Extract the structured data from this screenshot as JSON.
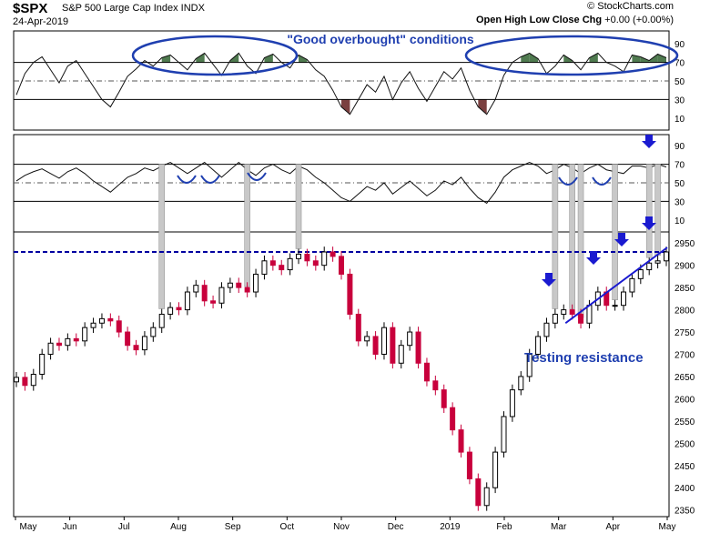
{
  "header": {
    "ticker": "$SPX",
    "description": "S&P 500 Large Cap Index  INDX",
    "date": "24-Apr-2019",
    "brand": "© StockCharts.com",
    "ohlc_labels": "Open  High  Low  Close  Chg",
    "chg_value": "+0.00 (+0.00%)"
  },
  "colors": {
    "up_candle": "#000000",
    "down_candle": "#c8003c",
    "overbought_fill": "#4f7a4f",
    "oversold_fill": "#7a4040",
    "highlight_bar": "#c8c8c8",
    "annotation_blue": "#1f3fb0",
    "resistance_line": "#1a1ad0"
  },
  "chart_data": [
    {
      "type": "line",
      "name": "RSI panel 1",
      "y_ticks": [
        "90",
        "70",
        "50",
        "30",
        "10"
      ],
      "ylim": [
        0,
        100
      ],
      "annotation": "\"Good overbought\" conditions",
      "values": [
        35,
        58,
        70,
        76,
        62,
        48,
        66,
        72,
        58,
        44,
        30,
        22,
        38,
        55,
        63,
        72,
        66,
        75,
        78,
        70,
        62,
        74,
        80,
        68,
        56,
        72,
        80,
        66,
        58,
        75,
        79,
        70,
        64,
        78,
        73,
        62,
        55,
        40,
        22,
        14,
        30,
        46,
        38,
        55,
        30,
        48,
        60,
        42,
        28,
        44,
        60,
        52,
        64,
        40,
        22,
        14,
        30,
        56,
        70,
        76,
        80,
        74,
        58,
        66,
        78,
        72,
        62,
        75,
        80,
        70,
        66,
        60,
        78,
        76,
        72,
        79,
        75
      ]
    },
    {
      "type": "line",
      "name": "RSI panel 2",
      "y_ticks": [
        "90",
        "70",
        "50",
        "30",
        "10"
      ],
      "ylim": [
        0,
        100
      ],
      "values": [
        52,
        58,
        62,
        65,
        60,
        55,
        62,
        66,
        60,
        52,
        46,
        40,
        48,
        56,
        60,
        66,
        63,
        68,
        72,
        66,
        60,
        66,
        72,
        64,
        56,
        64,
        72,
        64,
        58,
        66,
        70,
        64,
        60,
        68,
        64,
        56,
        50,
        42,
        34,
        30,
        38,
        46,
        42,
        50,
        38,
        45,
        52,
        44,
        36,
        42,
        52,
        48,
        56,
        44,
        34,
        28,
        40,
        56,
        64,
        68,
        72,
        68,
        60,
        64,
        70,
        66,
        60,
        66,
        70,
        64,
        62,
        60,
        68,
        68,
        66,
        70,
        67
      ]
    },
    {
      "type": "candlestick",
      "name": "$SPX price",
      "y_ticks": [
        "2950",
        "2900",
        "2850",
        "2800",
        "2750",
        "2700",
        "2650",
        "2600",
        "2550",
        "2500",
        "2450",
        "2400",
        "2350"
      ],
      "ylim": [
        2335,
        2975
      ],
      "x_ticks": [
        "May",
        "Jun",
        "Jul",
        "Aug",
        "Sep",
        "Oct",
        "Nov",
        "Dec",
        "2019",
        "Feb",
        "Mar",
        "Apr",
        "May"
      ],
      "resistance_level": 2930,
      "annotation": "Testing resistance",
      "closes": [
        2648,
        2630,
        2655,
        2700,
        2725,
        2720,
        2735,
        2730,
        2760,
        2770,
        2780,
        2775,
        2750,
        2720,
        2710,
        2740,
        2760,
        2790,
        2805,
        2800,
        2840,
        2855,
        2820,
        2815,
        2850,
        2860,
        2850,
        2840,
        2880,
        2910,
        2900,
        2890,
        2915,
        2925,
        2910,
        2900,
        2930,
        2920,
        2880,
        2790,
        2730,
        2740,
        2700,
        2760,
        2680,
        2720,
        2750,
        2680,
        2640,
        2620,
        2580,
        2530,
        2480,
        2420,
        2360,
        2400,
        2480,
        2560,
        2620,
        2650,
        2700,
        2740,
        2770,
        2790,
        2800,
        2790,
        2770,
        2810,
        2840,
        2810,
        2810,
        2840,
        2870,
        2890,
        2905,
        2910,
        2930
      ]
    }
  ]
}
